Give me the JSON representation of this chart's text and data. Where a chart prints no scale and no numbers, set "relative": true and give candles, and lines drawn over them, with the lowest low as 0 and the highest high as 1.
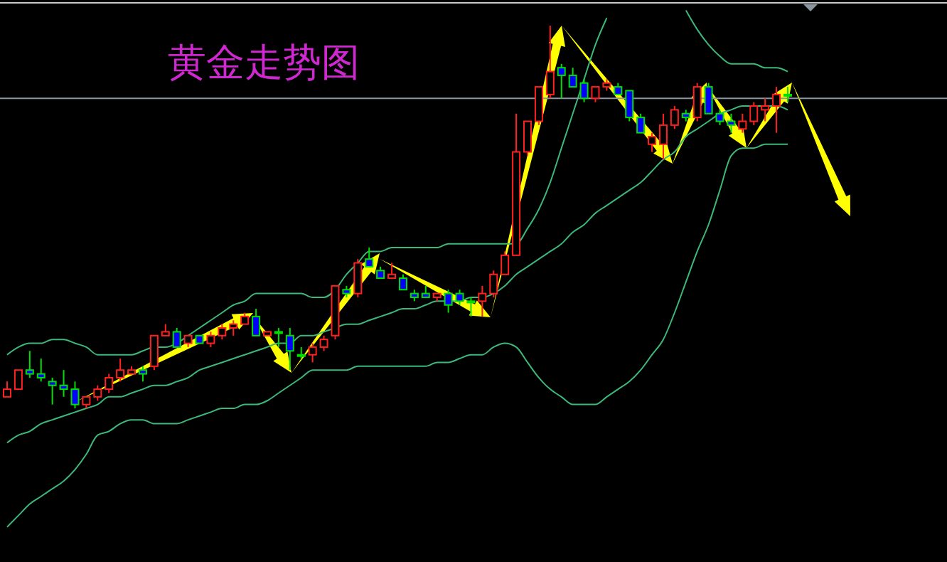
{
  "chart_data": {
    "type": "candlestick",
    "title": "黄金走势图",
    "relative": true,
    "categories": [
      null,
      null,
      null,
      null,
      null,
      null,
      null,
      null,
      null,
      null,
      null,
      null,
      null,
      null,
      null,
      null,
      null,
      null,
      null,
      null,
      null,
      null,
      null,
      null,
      null,
      null,
      null,
      null,
      null,
      null,
      null,
      null,
      null,
      null,
      null,
      null,
      null,
      null,
      null,
      null,
      null,
      null,
      null,
      null,
      null,
      null,
      null,
      null,
      null,
      null,
      null,
      null,
      null,
      null,
      null,
      null,
      null,
      null,
      null,
      null,
      null,
      null,
      null,
      null,
      null,
      null,
      null,
      null,
      null,
      null
    ],
    "ohlc": [
      [
        0.03,
        0.07,
        0.03,
        0.05
      ],
      [
        0.05,
        0.1,
        0.05,
        0.1
      ],
      [
        0.1,
        0.15,
        0.08,
        0.09
      ],
      [
        0.09,
        0.13,
        0.07,
        0.08
      ],
      [
        0.07,
        0.08,
        0.01,
        0.06
      ],
      [
        0.06,
        0.1,
        0.03,
        0.05
      ],
      [
        0.05,
        0.07,
        0,
        0.01
      ],
      [
        0.01,
        0.03,
        0,
        0.03
      ],
      [
        0.03,
        0.06,
        0.02,
        0.05
      ],
      [
        0.05,
        0.09,
        0.04,
        0.08
      ],
      [
        0.08,
        0.13,
        0.07,
        0.1
      ],
      [
        0.09,
        0.11,
        0.09,
        0.1
      ],
      [
        0.1,
        0.11,
        0.07,
        0.09
      ],
      [
        0.11,
        0.19,
        0.1,
        0.19
      ],
      [
        0.19,
        0.22,
        0.19,
        0.2
      ],
      [
        0.2,
        0.21,
        0.16,
        0.16
      ],
      [
        0.17,
        0.19,
        0.16,
        0.19
      ],
      [
        0.19,
        0.19,
        0.17,
        0.17
      ],
      [
        0.17,
        0.2,
        0.16,
        0.19
      ],
      [
        0.19,
        0.22,
        0.18,
        0.21
      ],
      [
        0.21,
        0.23,
        0.19,
        0.22
      ],
      [
        0.22,
        0.25,
        0.22,
        0.24
      ],
      [
        0.24,
        0.26,
        0.19,
        0.19
      ],
      [
        0.19,
        0.2,
        0.19,
        0.2
      ],
      [
        0.2,
        0.21,
        0.16,
        0.2
      ],
      [
        0.19,
        0.21,
        0.1,
        0.15
      ],
      [
        0.14,
        0.16,
        0.13,
        0.14
      ],
      [
        0.14,
        0.17,
        0.12,
        0.16
      ],
      [
        0.16,
        0.19,
        0.15,
        0.18
      ],
      [
        0.19,
        0.32,
        0.18,
        0.32
      ],
      [
        0.31,
        0.32,
        0.29,
        0.3
      ],
      [
        0.3,
        0.39,
        0.29,
        0.38
      ],
      [
        0.39,
        0.42,
        0.37,
        0.37
      ],
      [
        0.36,
        0.37,
        0.34,
        0.34
      ],
      [
        0.34,
        0.38,
        0.34,
        0.35
      ],
      [
        0.34,
        0.35,
        0.31,
        0.31
      ],
      [
        0.3,
        0.31,
        0.28,
        0.29
      ],
      [
        0.3,
        0.32,
        0.29,
        0.29
      ],
      [
        0.29,
        0.3,
        0.28,
        0.3
      ],
      [
        0.3,
        0.31,
        0.25,
        0.27
      ],
      [
        0.3,
        0.31,
        0.27,
        0.28
      ],
      [
        0.28,
        0.29,
        0.24,
        0.28
      ],
      [
        0.28,
        0.32,
        0.24,
        0.3
      ],
      [
        0.3,
        0.36,
        0.29,
        0.35
      ],
      [
        0.35,
        0.41,
        0.35,
        0.4
      ],
      [
        0.4,
        0.77,
        0.4,
        0.67
      ],
      [
        0.67,
        0.75,
        0.66,
        0.75
      ],
      [
        0.75,
        0.84,
        0.74,
        0.84
      ],
      [
        0.82,
        1,
        0.81,
        0.88
      ],
      [
        0.89,
        0.9,
        0.81,
        0.87
      ],
      [
        0.87,
        0.89,
        0.84,
        0.84
      ],
      [
        0.85,
        0.86,
        0.8,
        0.81
      ],
      [
        0.81,
        0.84,
        0.8,
        0.84
      ],
      [
        0.84,
        0.86,
        0.83,
        0.85
      ],
      [
        0.84,
        0.85,
        0.82,
        0.82
      ],
      [
        0.83,
        0.83,
        0.75,
        0.76
      ],
      [
        0.76,
        0.77,
        0.72,
        0.72
      ],
      [
        0.69,
        0.72,
        0.67,
        0.71
      ],
      [
        0.69,
        0.77,
        0.65,
        0.74
      ],
      [
        0.74,
        0.79,
        0.73,
        0.78
      ],
      [
        0.77,
        0.78,
        0.75,
        0.76
      ],
      [
        0.76,
        0.85,
        0.75,
        0.84
      ],
      [
        0.84,
        0.85,
        0.77,
        0.77
      ],
      [
        0.77,
        0.78,
        0.74,
        0.75
      ],
      [
        0.75,
        0.77,
        0.72,
        0.74
      ],
      [
        0.73,
        0.77,
        0.72,
        0.75
      ],
      [
        0.75,
        0.8,
        0.74,
        0.79
      ],
      [
        0.78,
        0.81,
        0.75,
        0.79
      ],
      [
        0.79,
        0.84,
        0.72,
        0.82
      ],
      [
        0.82,
        0.84,
        0.8,
        0.82
      ]
    ],
    "colors": [
      "#ff2020",
      "#ff2020",
      "#00e000",
      "#00e000",
      "#00e000",
      "#00e000",
      "#00e000",
      "#ff2020",
      "#ff2020",
      "#ff2020",
      "#ff2020",
      "#ff2020",
      "#00e000",
      "#ff2020",
      "#ff2020",
      "#00e000",
      "#ff2020",
      "#00e000",
      "#ff2020",
      "#ff2020",
      "#ff2020",
      "#ff2020",
      "#00e000",
      "#ff2020",
      "#00e000",
      "#00e000",
      "#00e000",
      "#ff2020",
      "#ff2020",
      "#ff2020",
      "#00e000",
      "#ff2020",
      "#00e000",
      "#00e000",
      "#ff2020",
      "#00e000",
      "#00e000",
      "#00e000",
      "#ff2020",
      "#00e000",
      "#00e000",
      "#00e000",
      "#ff2020",
      "#ff2020",
      "#ff2020",
      "#ff2020",
      "#ff2020",
      "#ff2020",
      "#ff2020",
      "#00e000",
      "#00e000",
      "#00e000",
      "#ff2020",
      "#ff2020",
      "#00e000",
      "#00e000",
      "#00e000",
      "#ff2020",
      "#ff2020",
      "#ff2020",
      "#00e000",
      "#ff2020",
      "#00e000",
      "#00e000",
      "#00e000",
      "#ff2020",
      "#ff2020",
      "#ff2020",
      "#ff2020",
      "#00e000"
    ],
    "series": [
      {
        "type": "line",
        "color": "#3cb878",
        "values": [
          0.14,
          0.16,
          0.17,
          0.17,
          0.18,
          0.18,
          0.17,
          0.16,
          0.14,
          0.14,
          0.14,
          0.14,
          0.15,
          0.16,
          0.16,
          0.17,
          0.19,
          0.21,
          0.23,
          0.25,
          0.27,
          0.28,
          0.3,
          0.3,
          0.3,
          0.3,
          0.3,
          0.29,
          0.29,
          0.31,
          0.35,
          0.38,
          0.41,
          0.41,
          0.42,
          0.42,
          0.42,
          0.42,
          0.42,
          0.43,
          0.43,
          0.43,
          0.43,
          0.43,
          0.43,
          0.43,
          0.47,
          0.52,
          0.59,
          0.68,
          0.77,
          0.86,
          0.95,
          1.02,
          null,
          null,
          null,
          null,
          null,
          null,
          1.04,
          0.99,
          0.95,
          0.92,
          0.9,
          0.9,
          0.9,
          0.89,
          0.89,
          0.88
        ]
      },
      {
        "type": "line",
        "color": "#3cb878",
        "values": [
          -0.09,
          -0.07,
          -0.06,
          -0.04,
          -0.03,
          -0.02,
          -0.01,
          0,
          0.01,
          0.03,
          0.03,
          0.04,
          0.05,
          0.06,
          0.06,
          0.07,
          0.08,
          0.1,
          0.11,
          0.12,
          0.13,
          0.14,
          0.15,
          0.16,
          0.17,
          0.17,
          0.19,
          0.19,
          0.2,
          0.21,
          0.22,
          0.22,
          0.23,
          0.24,
          0.25,
          0.26,
          0.26,
          0.27,
          0.28,
          0.28,
          0.28,
          0.29,
          0.29,
          0.3,
          0.32,
          0.35,
          0.37,
          0.39,
          0.41,
          0.43,
          0.46,
          0.48,
          0.51,
          0.53,
          0.55,
          0.57,
          0.59,
          0.62,
          0.65,
          0.67,
          0.71,
          0.73,
          0.75,
          0.77,
          0.78,
          0.79,
          0.79,
          0.79,
          0.79,
          0.78
        ]
      },
      {
        "type": "line",
        "color": "#3cb878",
        "values": [
          -0.31,
          -0.28,
          -0.25,
          -0.23,
          -0.21,
          -0.19,
          -0.16,
          -0.12,
          -0.07,
          -0.06,
          -0.04,
          -0.03,
          -0.03,
          -0.04,
          -0.04,
          -0.04,
          -0.03,
          -0.02,
          -0.01,
          0,
          0,
          0.01,
          0.01,
          0.02,
          0.04,
          0.06,
          0.08,
          0.1,
          0.1,
          0.1,
          0.1,
          0.11,
          0.11,
          0.11,
          0.11,
          0.11,
          0.11,
          0.11,
          0.12,
          0.12,
          0.13,
          0.14,
          0.14,
          0.16,
          0.17,
          0.16,
          0.12,
          0.08,
          0.05,
          0.03,
          0.01,
          0.01,
          0.01,
          0.03,
          0.05,
          0.07,
          0.1,
          0.14,
          0.18,
          0.25,
          0.33,
          0.41,
          0.48,
          0.57,
          0.66,
          0.68,
          0.68,
          0.69,
          0.69,
          0.69
        ]
      }
    ],
    "ref_lines": [
      {
        "axis": "y",
        "value": 0.81,
        "color": "#8c96a0"
      }
    ]
  }
}
